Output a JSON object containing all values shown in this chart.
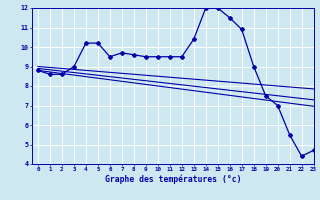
{
  "hours": [
    0,
    1,
    2,
    3,
    4,
    5,
    6,
    7,
    8,
    9,
    10,
    11,
    12,
    13,
    14,
    15,
    16,
    17,
    18,
    19,
    20,
    21,
    22,
    23
  ],
  "line1": [
    8.8,
    8.6,
    8.6,
    9.0,
    10.2,
    10.2,
    9.5,
    9.7,
    9.6,
    9.5,
    9.5,
    9.5,
    9.5,
    10.4,
    12.0,
    12.0,
    11.5,
    10.9,
    9.0,
    7.5,
    7.0,
    5.5,
    4.4,
    4.7
  ],
  "line2": [
    9.0,
    8.95,
    8.9,
    8.85,
    8.8,
    8.75,
    8.7,
    8.65,
    8.6,
    8.55,
    8.5,
    8.45,
    8.4,
    8.35,
    8.3,
    8.25,
    8.2,
    8.15,
    8.1,
    8.05,
    8.0,
    7.95,
    7.9,
    7.85
  ],
  "line3": [
    8.9,
    8.83,
    8.76,
    8.69,
    8.62,
    8.55,
    8.48,
    8.41,
    8.34,
    8.27,
    8.2,
    8.13,
    8.06,
    7.99,
    7.92,
    7.85,
    7.78,
    7.71,
    7.64,
    7.57,
    7.5,
    7.43,
    7.36,
    7.29
  ],
  "line4": [
    8.8,
    8.72,
    8.64,
    8.56,
    8.48,
    8.4,
    8.32,
    8.24,
    8.16,
    8.08,
    8.0,
    7.92,
    7.84,
    7.76,
    7.68,
    7.6,
    7.52,
    7.44,
    7.36,
    7.28,
    7.2,
    7.12,
    7.04,
    6.96
  ],
  "bg_color": "#cde8f0",
  "grid_color": "#ffffff",
  "line_color": "#0000aa",
  "xlabel": "Graphe des températures (°c)",
  "ylim": [
    4,
    12
  ],
  "xlim": [
    -0.5,
    23
  ],
  "yticks": [
    4,
    5,
    6,
    7,
    8,
    9,
    10,
    11,
    12
  ],
  "xticks": [
    0,
    1,
    2,
    3,
    4,
    5,
    6,
    7,
    8,
    9,
    10,
    11,
    12,
    13,
    14,
    15,
    16,
    17,
    18,
    19,
    20,
    21,
    22,
    23
  ]
}
